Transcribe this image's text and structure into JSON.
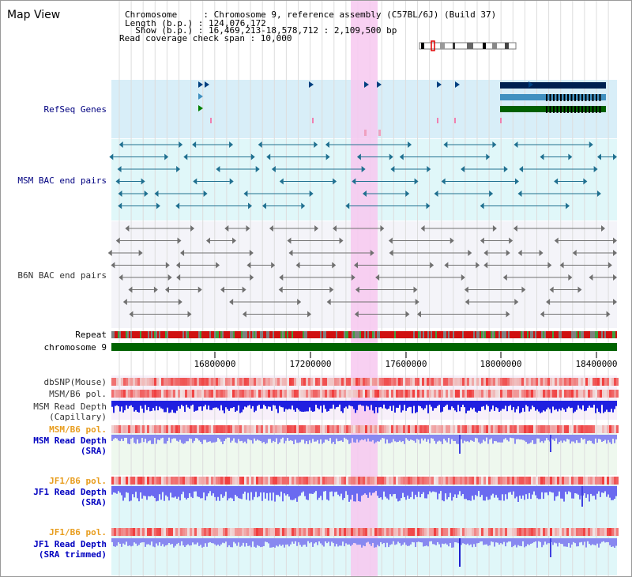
{
  "header": {
    "title": "Map View",
    "chromosome_line": "Chromosome     : Chromosome 9, reference assembly (C57BL/6J) (Build 37)",
    "length_line": "Length (b.p.) : 124,076,172",
    "show_line": "  Show (b.p.) : 16,469,213-18,578,712 : 2,109,500 bp",
    "coverage_line": "Read coverage check span : 10,000"
  },
  "tracks": {
    "refseq": "RefSeq Genes",
    "msm_bac": "MSM BAC end pairs",
    "b6n_bac": "B6N BAC end pairs",
    "repeat": "Repeat",
    "chromosome": "chromosome 9",
    "dbsnp": "dbSNP(Mouse)",
    "msm_b6_pol_1": "MSM/B6 pol.",
    "msm_depth_cap_1": "MSM Read Depth",
    "msm_depth_cap_2": "(Capillary)",
    "msm_b6_pol_2": "MSM/B6 pol.",
    "msm_depth_sra_1": "MSM Read Depth",
    "msm_depth_sra_2": "(SRA)",
    "jf1_b6_pol_1": "JF1/B6 pol.",
    "jf1_depth_sra_1": "JF1 Read Depth",
    "jf1_depth_sra_2": "(SRA)",
    "jf1_b6_pol_2": "JF1/B6 pol.",
    "jf1_depth_trim_1": "JF1 Read Depth",
    "jf1_depth_trim_2": "(SRA trimmed)"
  },
  "axis": {
    "ticks": [
      "16800000",
      "17200000",
      "17600000",
      "18000000",
      "18400000"
    ]
  },
  "colors": {
    "highlight": "#f7c8f0",
    "refseq_bg": "#d8eef8",
    "msm_bac_bg": "#e0f7f9",
    "b6n_bac_bg": "#f4f4f9",
    "chromosome_bar": "#006400",
    "depth_capillary": "#2020e0",
    "depth_sra": "#8888f0",
    "pol": "#f07070"
  }
}
